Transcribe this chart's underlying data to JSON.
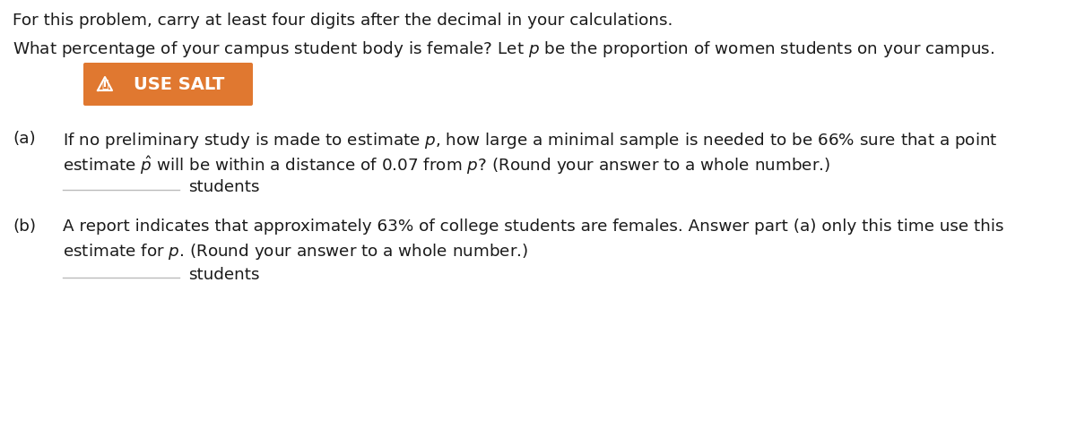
{
  "background_color": "#ffffff",
  "text_color": "#1a1a1a",
  "font_size": 13.2,
  "underline_color": "#bbbbbb",
  "salt_bg_color": "#E07830",
  "salt_text_color": "#ffffff",
  "lines": [
    "For this problem, carry at least four digits after the decimal in your calculations.",
    "What percentage of your campus student body is female? Let $p$ be the proportion of women students on your campus."
  ],
  "salt_label": "USE SALT",
  "part_a_label": "(a)",
  "part_a_text1": "If no preliminary study is made to estimate $p$, how large a minimal sample is needed to be 66% sure that a point",
  "part_a_text2": "estimate $\\hat{p}$ will be within a distance of 0.07 from $p$? (Round your answer to a whole number.)",
  "part_a_answer": "students",
  "part_b_label": "(b)",
  "part_b_text1": "A report indicates that approximately 63% of college students are females. Answer part (a) only this time use this",
  "part_b_text2": "estimate for $p$. (Round your answer to a whole number.)",
  "part_b_answer": "students"
}
